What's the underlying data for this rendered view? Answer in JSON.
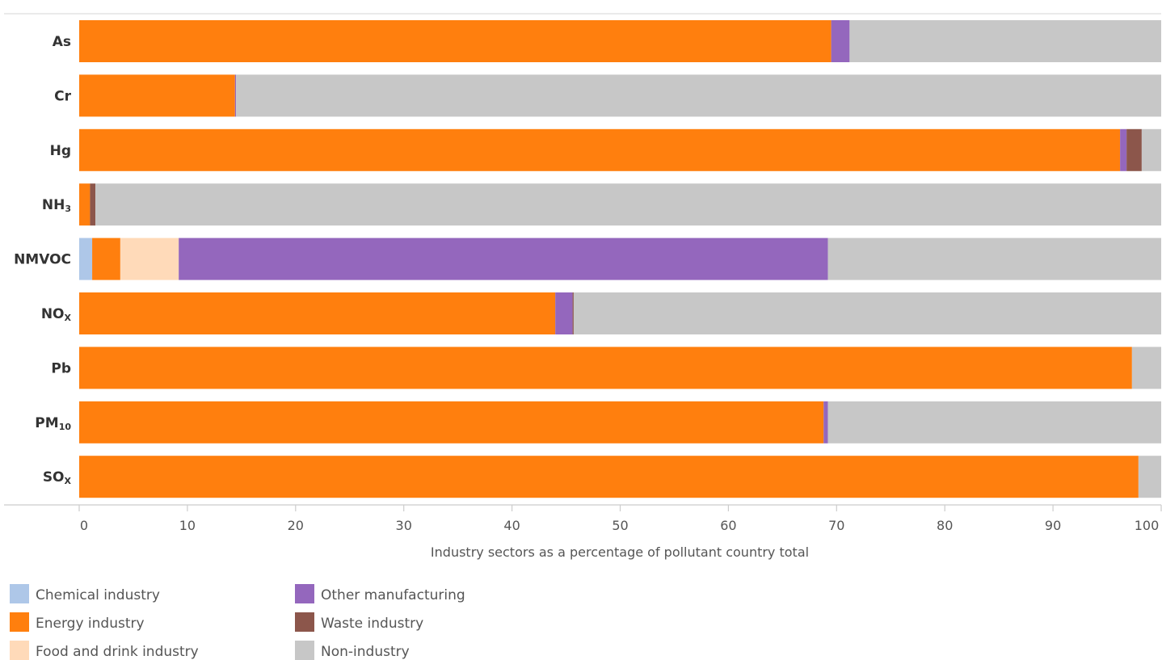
{
  "chart_data": {
    "type": "bar",
    "orientation": "horizontal",
    "stacked": true,
    "categories": [
      {
        "label": "As",
        "base": "As",
        "sub": ""
      },
      {
        "label": "Cr",
        "base": "Cr",
        "sub": ""
      },
      {
        "label": "Hg",
        "base": "Hg",
        "sub": ""
      },
      {
        "label": "NH₃",
        "base": "NH",
        "sub": "3"
      },
      {
        "label": "NMVOC",
        "base": "NMVOC",
        "sub": ""
      },
      {
        "label": "NOₓ",
        "base": "NO",
        "sub": "X"
      },
      {
        "label": "Pb",
        "base": "Pb",
        "sub": ""
      },
      {
        "label": "PM₁₀",
        "base": "PM",
        "sub": "10"
      },
      {
        "label": "SOₓ",
        "base": "SO",
        "sub": "X"
      }
    ],
    "series": [
      {
        "name": "Chemical industry",
        "color": "#aec7e8",
        "values": [
          0,
          0,
          0,
          0,
          1.2,
          0,
          0,
          0,
          0
        ]
      },
      {
        "name": "Energy industry",
        "color": "#ff7f0e",
        "values": [
          69.5,
          14.4,
          96.2,
          1.0,
          2.6,
          44.0,
          97.3,
          68.8,
          97.9
        ]
      },
      {
        "name": "Food and drink industry",
        "color": "#ffdab9",
        "values": [
          0,
          0,
          0,
          0,
          5.4,
          0,
          0,
          0,
          0
        ]
      },
      {
        "name": "Other manufacturing",
        "color": "#9467bd",
        "values": [
          1.7,
          0.1,
          0.6,
          0,
          60.0,
          1.6,
          0,
          0.4,
          0
        ]
      },
      {
        "name": "Waste industry",
        "color": "#8c564b",
        "values": [
          0,
          0,
          1.4,
          0.5,
          0,
          0.1,
          0,
          0,
          0
        ]
      },
      {
        "name": "Non-industry",
        "color": "#c7c7c7",
        "values": [
          28.8,
          85.5,
          1.8,
          98.5,
          30.8,
          54.3,
          2.7,
          30.8,
          2.1
        ]
      }
    ],
    "xlabel": "Industry sectors as a percentage of pollutant country total",
    "ylabel": "",
    "xlim": [
      0,
      100
    ],
    "xticks": [
      0,
      10,
      20,
      30,
      40,
      50,
      60,
      70,
      80,
      90,
      100
    ],
    "grid": false,
    "legend_position": "bottom"
  }
}
